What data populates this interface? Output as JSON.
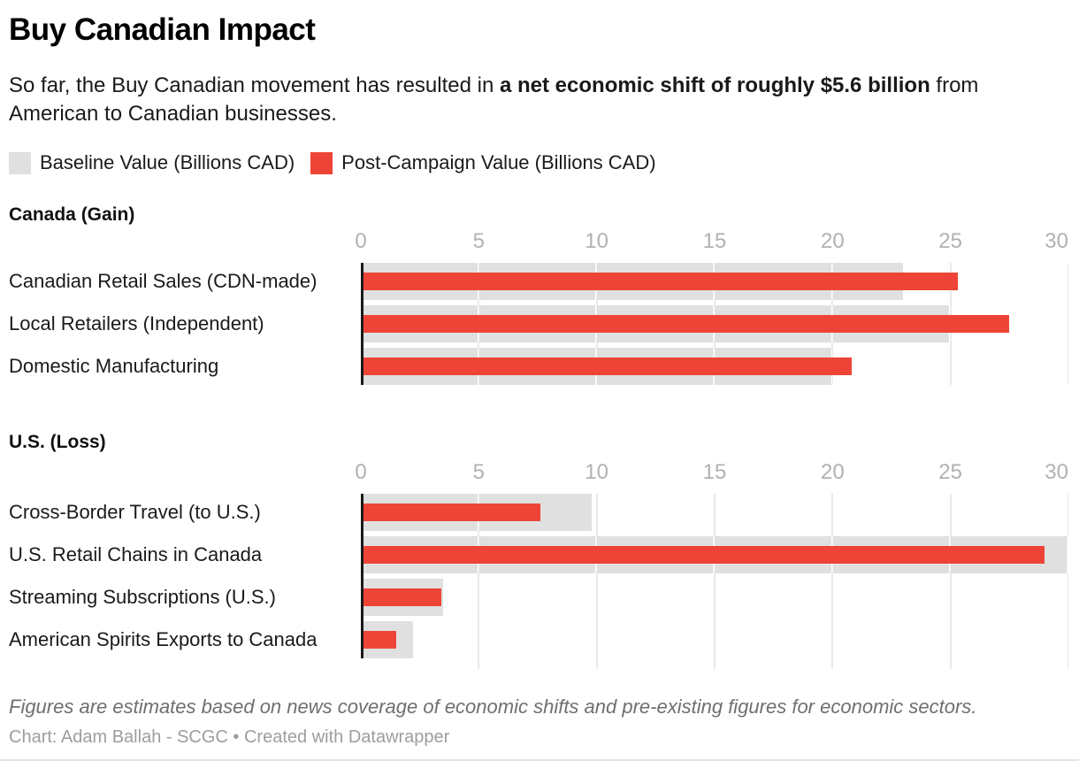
{
  "header": {
    "title": "Buy Canadian Impact",
    "subtitle_prefix": "So far, the Buy Canadian movement has resulted in ",
    "subtitle_bold": "a net economic shift of roughly $5.6 billion",
    "subtitle_suffix": " from American to Canadian businesses."
  },
  "legend": {
    "items": [
      {
        "label": "Baseline Value (Billions CAD)",
        "color": "#e0e0e0"
      },
      {
        "label": "Post-Campaign Value (Billions CAD)",
        "color": "#ee4437"
      }
    ]
  },
  "chart_data": [
    {
      "type": "bar",
      "orientation": "horizontal",
      "title": "Canada (Gain)",
      "categories": [
        "Canadian Retail Sales (CDN-made)",
        "Local Retailers (Independent)",
        "Domestic Manufacturing"
      ],
      "series": [
        {
          "name": "Baseline Value (Billions CAD)",
          "color": "#e0e0e0",
          "values": [
            23.0,
            25.0,
            20.0
          ]
        },
        {
          "name": "Post-Campaign Value (Billions CAD)",
          "color": "#ee4437",
          "values": [
            25.3,
            27.5,
            20.8
          ]
        }
      ],
      "unit": "Billions CAD",
      "xlim": [
        0,
        30
      ],
      "xticks": [
        0,
        5,
        10,
        15,
        20,
        25,
        30
      ],
      "grid": true,
      "legend_position": "top"
    },
    {
      "type": "bar",
      "orientation": "horizontal",
      "title": "U.S. (Loss)",
      "categories": [
        "Cross-Border Travel (to U.S.)",
        "U.S. Retail Chains in Canada",
        "Streaming Subscriptions (U.S.)",
        "American Spirits Exports to Canada"
      ],
      "series": [
        {
          "name": "Baseline Value (Billions CAD)",
          "color": "#e0e0e0",
          "values": [
            9.8,
            30.1,
            3.5,
            2.2
          ]
        },
        {
          "name": "Post-Campaign Value (Billions CAD)",
          "color": "#ee4437",
          "values": [
            7.6,
            29.0,
            3.4,
            1.5
          ]
        }
      ],
      "unit": "Billions CAD",
      "xlim": [
        0,
        30
      ],
      "xticks": [
        0,
        5,
        10,
        15,
        20,
        25,
        30
      ],
      "grid": true,
      "legend_position": "top"
    }
  ],
  "footer": {
    "note": "Figures are estimates based on news coverage of economic shifts and pre-existing figures for economic sectors.",
    "attribution": "Chart: Adam Ballah - SCGC • Created with Datawrapper"
  },
  "colors": {
    "baseline_bar": "#e0e0e0",
    "post_campaign_bar": "#ee4437",
    "axis_line": "#1a1a1a",
    "gridline": "#e9e9e9",
    "tick_label": "#b1b1b1",
    "note_text": "#6f6f6f",
    "attribution_text": "#9d9d9d"
  }
}
